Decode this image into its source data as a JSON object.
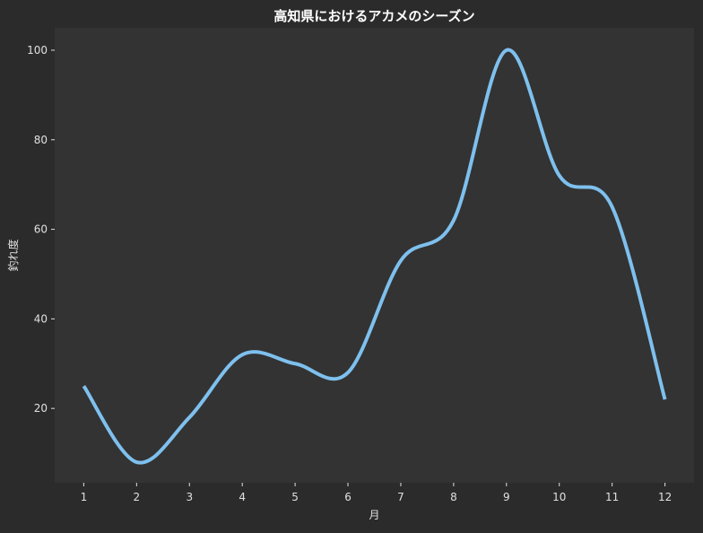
{
  "chart_data": {
    "type": "line",
    "title": "高知県におけるアカメのシーズン",
    "xlabel": "月",
    "ylabel": "釣れ度",
    "x": [
      1,
      2,
      3,
      4,
      5,
      6,
      7,
      8,
      9,
      10,
      11,
      12
    ],
    "series": [
      {
        "values": [
          25,
          8,
          18,
          32,
          30,
          28,
          53,
          62,
          100,
          72,
          65,
          22
        ]
      }
    ],
    "x_ticks": [
      "1",
      "2",
      "3",
      "4",
      "5",
      "6",
      "7",
      "8",
      "9",
      "10",
      "11",
      "12"
    ],
    "y_ticks": [
      "20",
      "40",
      "60",
      "80",
      "100"
    ],
    "xlim": [
      0.45,
      12.55
    ],
    "ylim": [
      3.4,
      105
    ],
    "grid": false,
    "legend": "none",
    "colors": {
      "figure_background": "#2b2b2b",
      "plot_background": "#333333",
      "line": "#7ec0ee",
      "text": "#e0e0e0",
      "title": "#ffffff"
    }
  }
}
